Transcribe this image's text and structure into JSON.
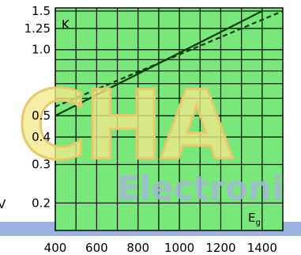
{
  "watermark": {
    "brand": "CHA",
    "sub": "Electroni",
    "fill_color": "#f2e98a",
    "outline_color": "#e8c86a",
    "sub_color": "#a6b4d9"
  },
  "colors": {
    "plot_bg": "#78e87a",
    "grid": "#000000",
    "band": "#9bb3de",
    "solid_line": "#0a3a0a",
    "dashed_line": "#0a3a0a",
    "axis_strip": "#7fcf7f"
  },
  "chart_data": {
    "type": "line",
    "title": "",
    "ylabel": "K",
    "xlabel_main": "E",
    "xlabel_sub": "g",
    "xlim": [
      400,
      1500
    ],
    "ylim": [
      0.15,
      1.55
    ],
    "y_scale": "log",
    "x_ticks": [
      400,
      600,
      800,
      1000,
      1200,
      1400
    ],
    "x_tick_labels": [
      "400",
      "600",
      "800",
      "1000",
      "1200",
      "1400"
    ],
    "y_ticks": [
      1.5,
      1.25,
      1.0,
      0.5,
      0.4,
      0.3,
      0.2
    ],
    "y_tick_labels": [
      "1.5",
      "1.25",
      "1.0",
      "0.5",
      "0.4",
      "0.3",
      "0.2"
    ],
    "x_grid": [
      400,
      500,
      600,
      700,
      800,
      900,
      1000,
      1100,
      1200,
      1300,
      1400
    ],
    "y_grid": [
      1.5,
      1.25,
      1.0,
      0.9,
      0.8,
      0.7,
      0.6,
      0.5,
      0.4,
      0.3,
      0.2
    ],
    "grid": true,
    "series": [
      {
        "style": "solid",
        "x": [
          400,
          1400
        ],
        "y": [
          0.5,
          1.5
        ]
      },
      {
        "style": "dashed",
        "x": [
          400,
          1500
        ],
        "y": [
          0.55,
          1.5
        ]
      }
    ],
    "left_fragment": "V"
  }
}
